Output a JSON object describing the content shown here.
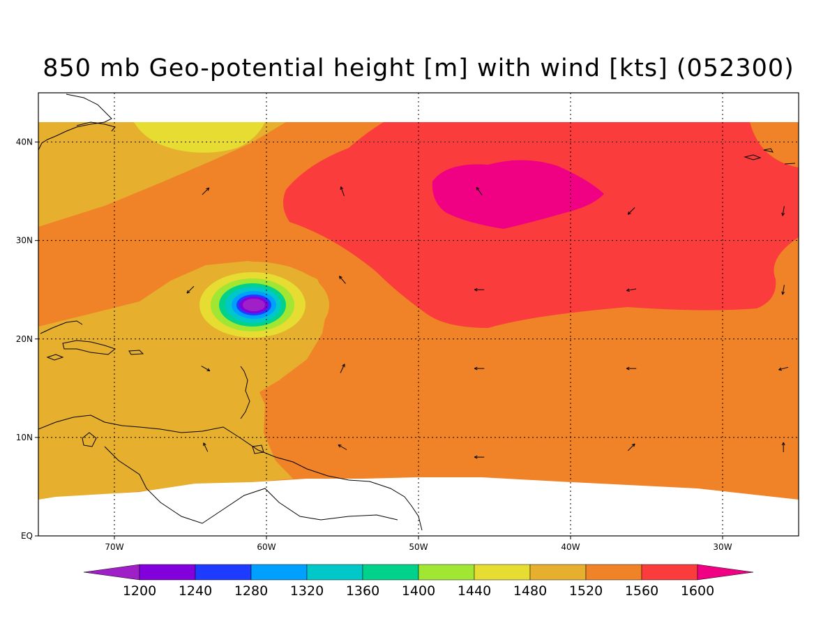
{
  "title": "850 mb Geo-potential height [m] with wind [kts] (052300)",
  "map": {
    "region": "tropical North Atlantic / Caribbean",
    "lon_range": [
      -75,
      -25
    ],
    "lat_range": [
      0,
      45
    ],
    "lat_ticks": [
      {
        "value": 40,
        "label": "40N"
      },
      {
        "value": 30,
        "label": "30N"
      },
      {
        "value": 20,
        "label": "20N"
      },
      {
        "value": 10,
        "label": "10N"
      },
      {
        "value": 0,
        "label": "EQ"
      }
    ],
    "lon_ticks": [
      {
        "value": -70,
        "label": "70W"
      },
      {
        "value": -60,
        "label": "60W"
      },
      {
        "value": -50,
        "label": "50W"
      },
      {
        "value": -40,
        "label": "40W"
      },
      {
        "value": -30,
        "label": "30W"
      }
    ],
    "gridlines": "dotted",
    "features": {
      "low_center": {
        "lon": -60.8,
        "lat": 23.5,
        "contour": "below 1200"
      },
      "high_center": {
        "lon": -44,
        "lat": 34.5,
        "contour": "above 1600"
      }
    }
  },
  "colorbar": {
    "labels": [
      "1200",
      "1240",
      "1280",
      "1320",
      "1360",
      "1400",
      "1440",
      "1480",
      "1520",
      "1560",
      "1600"
    ],
    "colors": [
      "#a020c8",
      "#8200dc",
      "#1e3cff",
      "#00a0ff",
      "#00c8c8",
      "#00d28c",
      "#a0e632",
      "#e6dc32",
      "#e6af2d",
      "#f08228",
      "#fa3c3c",
      "#f00082"
    ]
  },
  "wind_vectors": [
    {
      "lon": -64,
      "lat": 35,
      "dir_deg": 45
    },
    {
      "lon": -55,
      "lat": 35,
      "dir_deg": 110
    },
    {
      "lon": -46,
      "lat": 35,
      "dir_deg": 125
    },
    {
      "lon": -36,
      "lat": 33,
      "dir_deg": 225
    },
    {
      "lon": -26,
      "lat": 33,
      "dir_deg": 260
    },
    {
      "lon": -65,
      "lat": 25,
      "dir_deg": 225
    },
    {
      "lon": -55,
      "lat": 26,
      "dir_deg": 130
    },
    {
      "lon": -46,
      "lat": 25,
      "dir_deg": 180
    },
    {
      "lon": -36,
      "lat": 25,
      "dir_deg": 190
    },
    {
      "lon": -26,
      "lat": 25,
      "dir_deg": 260
    },
    {
      "lon": -64,
      "lat": 17,
      "dir_deg": 330
    },
    {
      "lon": -55,
      "lat": 17,
      "dir_deg": 65
    },
    {
      "lon": -46,
      "lat": 17,
      "dir_deg": 180
    },
    {
      "lon": -36,
      "lat": 17,
      "dir_deg": 180
    },
    {
      "lon": -26,
      "lat": 17,
      "dir_deg": 195
    },
    {
      "lon": -64,
      "lat": 9,
      "dir_deg": 115
    },
    {
      "lon": -55,
      "lat": 9,
      "dir_deg": 150
    },
    {
      "lon": -46,
      "lat": 8,
      "dir_deg": 180
    },
    {
      "lon": -36,
      "lat": 9,
      "dir_deg": 45
    },
    {
      "lon": -26,
      "lat": 9,
      "dir_deg": 90
    }
  ]
}
